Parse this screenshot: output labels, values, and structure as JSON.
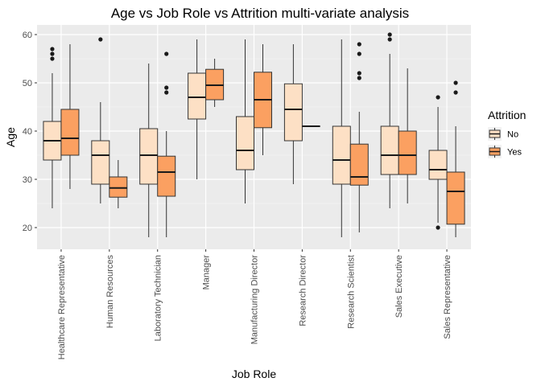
{
  "chart_data": {
    "type": "boxplot",
    "title": "Age vs Job Role vs Attrition multi-variate analysis",
    "xlabel": "Job Role",
    "ylabel": "Age",
    "ylim": [
      15.5,
      62
    ],
    "yticks": [
      20,
      30,
      40,
      50,
      60
    ],
    "grid": true,
    "legend": {
      "title": "Attrition",
      "position": "right"
    },
    "categories": [
      "Healthcare Representative",
      "Human Resources",
      "Laboratory Technician",
      "Manager",
      "Manufacturing Director",
      "Research Director",
      "Research Scientist",
      "Sales Executive",
      "Sales Representative"
    ],
    "series": [
      {
        "name": "No",
        "color": "#fde0c5",
        "boxes": [
          {
            "min": 24,
            "q1": 34,
            "median": 38,
            "q3": 42,
            "max": 52,
            "outliers": [
              55,
              56,
              57
            ]
          },
          {
            "min": 25,
            "q1": 29,
            "median": 35,
            "q3": 38,
            "max": 46,
            "outliers": [
              59
            ]
          },
          {
            "min": 18,
            "q1": 29,
            "median": 35,
            "q3": 40.5,
            "max": 54,
            "outliers": []
          },
          {
            "min": 30,
            "q1": 42.5,
            "median": 47,
            "q3": 52,
            "max": 59,
            "outliers": []
          },
          {
            "min": 25,
            "q1": 32,
            "median": 36,
            "q3": 43,
            "max": 59,
            "outliers": []
          },
          {
            "min": 29,
            "q1": 38,
            "median": 44.5,
            "q3": 49.8,
            "max": 58,
            "outliers": []
          },
          {
            "min": 18,
            "q1": 29,
            "median": 34,
            "q3": 41,
            "max": 59,
            "outliers": []
          },
          {
            "min": 24,
            "q1": 31,
            "median": 35,
            "q3": 41,
            "max": 56,
            "outliers": [
              59,
              60
            ]
          },
          {
            "min": 21,
            "q1": 30,
            "median": 32,
            "q3": 36,
            "max": 45,
            "outliers": [
              20,
              47
            ]
          }
        ]
      },
      {
        "name": "Yes",
        "color": "#fba061",
        "boxes": [
          {
            "min": 28,
            "q1": 35,
            "median": 38.5,
            "q3": 44.5,
            "max": 58,
            "outliers": []
          },
          {
            "min": 24,
            "q1": 26.3,
            "median": 28.2,
            "q3": 30.5,
            "max": 34,
            "outliers": []
          },
          {
            "min": 18,
            "q1": 26.5,
            "median": 31.5,
            "q3": 34.8,
            "max": 40,
            "outliers": [
              48,
              49,
              56
            ]
          },
          {
            "min": 45,
            "q1": 46.5,
            "median": 49.5,
            "q3": 52.8,
            "max": 55,
            "outliers": []
          },
          {
            "min": 35,
            "q1": 40.7,
            "median": 46.5,
            "q3": 52.2,
            "max": 58,
            "outliers": []
          },
          {
            "min": 41,
            "q1": 41,
            "median": 41,
            "q3": 41,
            "max": 41,
            "outliers": []
          },
          {
            "min": 19,
            "q1": 28.8,
            "median": 30.5,
            "q3": 37.3,
            "max": 44,
            "outliers": [
              51,
              52,
              56,
              58
            ]
          },
          {
            "min": 25,
            "q1": 31,
            "median": 35,
            "q3": 40,
            "max": 53,
            "outliers": []
          },
          {
            "min": 18,
            "q1": 20.7,
            "median": 27.5,
            "q3": 31.5,
            "max": 41,
            "outliers": [
              48,
              50
            ]
          }
        ]
      }
    ]
  }
}
